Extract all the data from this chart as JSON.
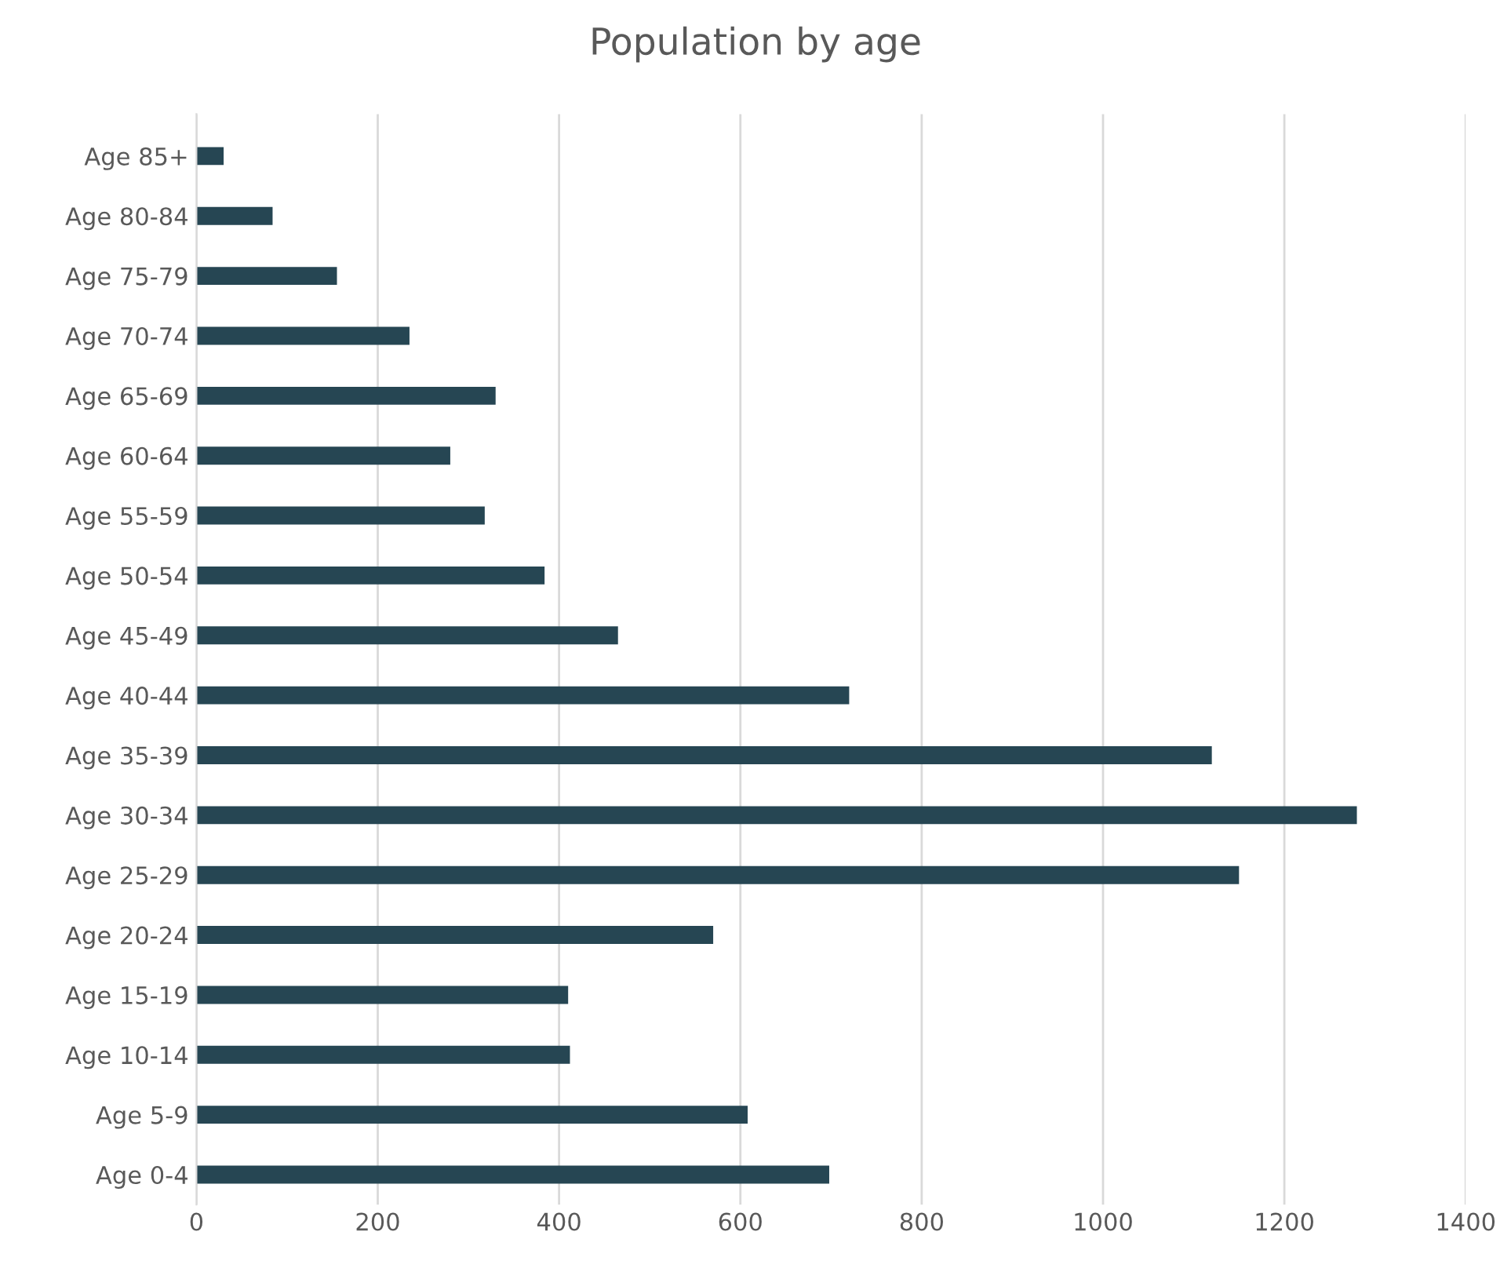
{
  "chart_data": {
    "type": "bar",
    "orientation": "horizontal",
    "title": "Population by age",
    "categories": [
      "Age 85+",
      "Age 80-84",
      "Age 75-79",
      "Age 70-74",
      "Age 65-69",
      "Age 60-64",
      "Age 55-59",
      "Age 50-54",
      "Age 45-49",
      "Age 40-44",
      "Age 35-39",
      "Age 30-34",
      "Age 25-29",
      "Age 20-24",
      "Age 15-19",
      "Age 10-14",
      "Age 5-9",
      "Age 0-4"
    ],
    "values": [
      30,
      84,
      155,
      235,
      330,
      280,
      318,
      384,
      465,
      720,
      1120,
      1280,
      1150,
      570,
      410,
      412,
      608,
      698
    ],
    "color": "#264653",
    "xlim": [
      0,
      1400
    ],
    "xticks": [
      0,
      200,
      400,
      600,
      800,
      1000,
      1200,
      1400
    ],
    "grid": "x"
  }
}
